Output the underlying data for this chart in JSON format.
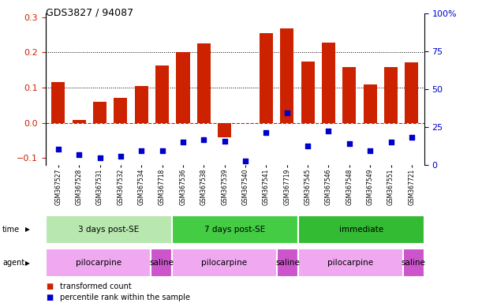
{
  "title": "GDS3827 / 94087",
  "samples": [
    "GSM367527",
    "GSM367528",
    "GSM367531",
    "GSM367532",
    "GSM367534",
    "GSM367718",
    "GSM367536",
    "GSM367538",
    "GSM367539",
    "GSM367540",
    "GSM367541",
    "GSM367719",
    "GSM367545",
    "GSM367546",
    "GSM367548",
    "GSM367549",
    "GSM367551",
    "GSM367721"
  ],
  "red_values": [
    0.115,
    0.008,
    0.06,
    0.072,
    0.105,
    0.163,
    0.202,
    0.225,
    -0.04,
    0.0,
    0.255,
    0.267,
    0.175,
    0.228,
    0.158,
    0.108,
    0.158,
    0.172
  ],
  "blue_values": [
    -0.075,
    -0.09,
    -0.1,
    -0.095,
    -0.08,
    -0.08,
    -0.055,
    -0.048,
    -0.052,
    -0.108,
    -0.028,
    0.028,
    -0.065,
    -0.022,
    -0.058,
    -0.08,
    -0.055,
    -0.042
  ],
  "ylim_left": [
    -0.12,
    0.31
  ],
  "ylim_right": [
    0,
    100
  ],
  "yticks_left": [
    -0.1,
    0.0,
    0.1,
    0.2,
    0.3
  ],
  "yticks_right_vals": [
    0,
    25,
    50,
    75,
    100
  ],
  "yticks_right_labels": [
    "0",
    "25",
    "50",
    "75",
    "100%"
  ],
  "bar_color": "#cc2200",
  "blue_color": "#0000cc",
  "zero_line_color": "#cc2200",
  "dotted_lines": [
    0.1,
    0.2
  ],
  "time_groups": [
    {
      "label": "3 days post-SE",
      "start": 0,
      "end": 5,
      "color": "#b8e8b0"
    },
    {
      "label": "7 days post-SE",
      "start": 6,
      "end": 11,
      "color": "#44cc44"
    },
    {
      "label": "immediate",
      "start": 12,
      "end": 17,
      "color": "#33bb33"
    }
  ],
  "agent_groups": [
    {
      "label": "pilocarpine",
      "start": 0,
      "end": 4,
      "color": "#f0a8f0"
    },
    {
      "label": "saline",
      "start": 5,
      "end": 5,
      "color": "#cc55cc"
    },
    {
      "label": "pilocarpine",
      "start": 6,
      "end": 10,
      "color": "#f0a8f0"
    },
    {
      "label": "saline",
      "start": 11,
      "end": 11,
      "color": "#cc55cc"
    },
    {
      "label": "pilocarpine",
      "start": 12,
      "end": 16,
      "color": "#f0a8f0"
    },
    {
      "label": "saline",
      "start": 17,
      "end": 17,
      "color": "#cc55cc"
    }
  ],
  "legend_red": "transformed count",
  "legend_blue": "percentile rank within the sample"
}
